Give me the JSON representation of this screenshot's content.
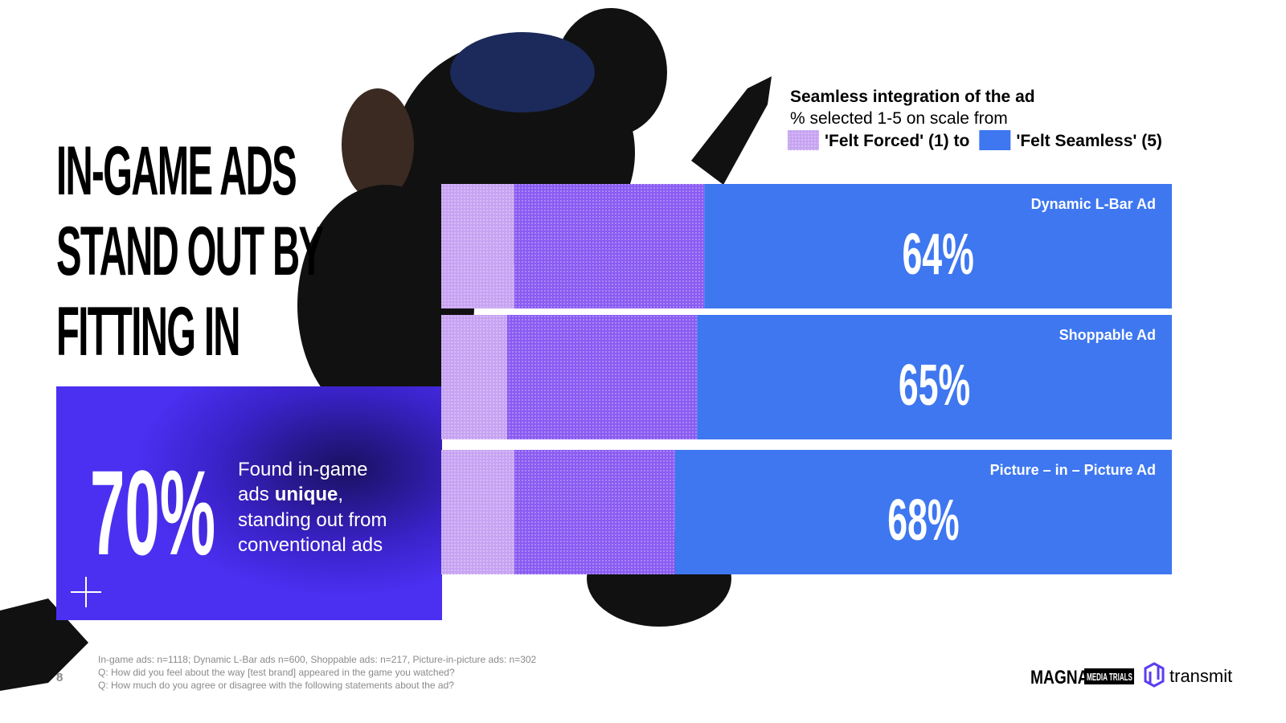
{
  "headline": [
    "IN-GAME ADS",
    "STAND OUT BY",
    "FITTING IN"
  ],
  "callout": {
    "stat": "70%",
    "line1": "Found in-game",
    "line2": "ads",
    "line2_bold": "unique",
    "line2_end": ",",
    "line3": "standing out from",
    "line4": "conventional ads"
  },
  "footnotes": [
    "In-game ads: n=1118; Dynamic L-Bar ads n=600, Shoppable ads: n=217, Picture-in-picture ads: n=302",
    "Q: How did you feel about the way [test brand] appeared in the game you watched?",
    "Q: How much do you agree or disagree with the following statements about the ad?"
  ],
  "page_number": "8",
  "logos": [
    "MAGNA",
    "MEDIA TRIALS",
    "transmit"
  ],
  "chart_data": {
    "type": "bar",
    "orientation": "horizontal",
    "stacked": true,
    "title": "Seamless integration of the ad",
    "subtitle": "% selected 1-5 on scale from",
    "categories": [
      "Dynamic L-Bar Ad",
      "Shoppable Ad",
      "Picture – in – Picture Ad"
    ],
    "xlim": [
      0,
      100
    ],
    "series": [
      {
        "name": "'Felt Forced' (1) to",
        "color": "#c7a4f2",
        "values": [
          10,
          9,
          10
        ]
      },
      {
        "color": "#8a5cf2",
        "values": [
          26,
          26,
          22
        ]
      },
      {
        "name": "'Felt Seamless' (5)",
        "color": "#3e77f0",
        "values": [
          64,
          65,
          68
        ],
        "value_labels": [
          "64%",
          "65%",
          "68%"
        ]
      }
    ]
  }
}
